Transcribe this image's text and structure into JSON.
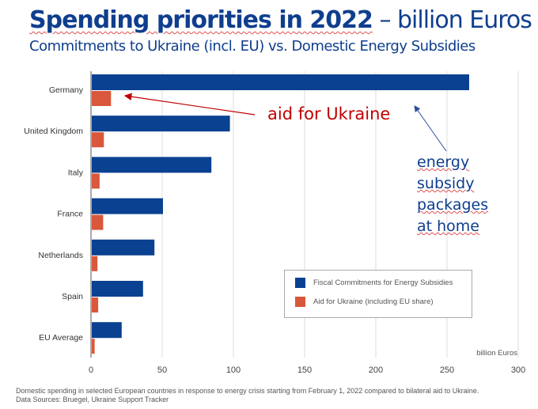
{
  "title": {
    "bold": "Spending priorities in 2022",
    "rest": " – billion Euros"
  },
  "subtitle": "Commitments to Ukraine (incl. EU) vs. Domestic Energy Subsidies",
  "annotations": {
    "aid": "aid for Ukraine",
    "energy": [
      "energy",
      "subsidy",
      "packages",
      "at home"
    ]
  },
  "footnote": [
    "Domestic spending in selected European countries in response to energy crisis starting from February 1, 2022 compared to bilateral aid to Ukraine.",
    "Data Sources: Bruegel, Ukraine Support Tracker"
  ],
  "chart_data": {
    "type": "bar",
    "orientation": "horizontal",
    "categories": [
      "Germany",
      "United Kingdom",
      "Italy",
      "France",
      "Netherlands",
      "Spain",
      "EU Average"
    ],
    "series": [
      {
        "name": "Fiscal Commitments for Energy Subsidies",
        "color": "#0a4191",
        "values": [
          265,
          97,
          84,
          50,
          44,
          36,
          21
        ]
      },
      {
        "name": "Aid for Ukraine (including EU share)",
        "color": "#d9573a",
        "values": [
          13.5,
          8.5,
          5.5,
          8,
          4,
          4.5,
          2
        ]
      }
    ],
    "xlabel": "billion Euros",
    "xlim": [
      0,
      300
    ],
    "xticks": [
      "0",
      "50",
      "100",
      "150",
      "200",
      "250",
      "300"
    ],
    "grid": true,
    "legend": "bottom-right"
  }
}
